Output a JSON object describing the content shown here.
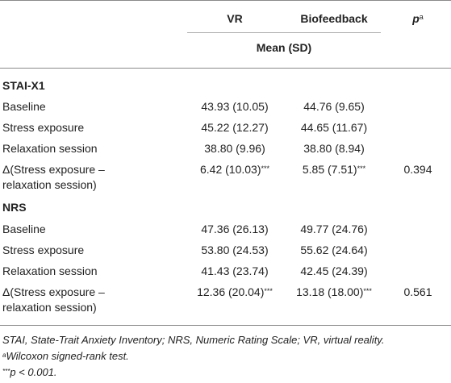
{
  "header": {
    "col_vr": "VR",
    "col_bio": "Biofeedback",
    "col_p": "p",
    "col_p_sup": "a",
    "subheader": "Mean (SD)"
  },
  "sections": [
    {
      "title": "STAI-X1",
      "rows": [
        {
          "label": "Baseline",
          "vr": "43.93 (10.05)",
          "bio": "44.76 (9.65)",
          "p": ""
        },
        {
          "label": "Stress exposure",
          "vr": "45.22 (12.27)",
          "bio": "44.65 (11.67)",
          "p": ""
        },
        {
          "label": "Relaxation session",
          "vr": "38.80 (9.96)",
          "bio": "38.80 (8.94)",
          "p": ""
        },
        {
          "label_line1": "Δ(Stress exposure –",
          "label_line2": "relaxation session)",
          "vr": "6.42 (10.03)",
          "vr_sig": "***",
          "bio": "5.85 (7.51)",
          "bio_sig": "***",
          "p": "0.394"
        }
      ]
    },
    {
      "title": "NRS",
      "rows": [
        {
          "label": "Baseline",
          "vr": "47.36 (26.13)",
          "bio": "49.77 (24.76)",
          "p": ""
        },
        {
          "label": "Stress exposure",
          "vr": "53.80 (24.53)",
          "bio": "55.62 (24.64)",
          "p": ""
        },
        {
          "label": "Relaxation session",
          "vr": "41.43 (23.74)",
          "bio": "42.45 (24.39)",
          "p": ""
        },
        {
          "label_line1": "Δ(Stress exposure –",
          "label_line2": "relaxation session)",
          "vr": "12.36 (20.04)",
          "vr_sig": "***",
          "bio": "13.18 (18.00)",
          "bio_sig": "***",
          "p": "0.561"
        }
      ]
    }
  ],
  "footnotes": {
    "abbrev": "STAI, State-Trait Anxiety Inventory; NRS, Numeric Rating Scale; VR, virtual reality.",
    "a_mark": "a",
    "a_text": "Wilcoxon signed-rank test.",
    "sig_mark": "***",
    "sig_text": "p < 0.001."
  }
}
